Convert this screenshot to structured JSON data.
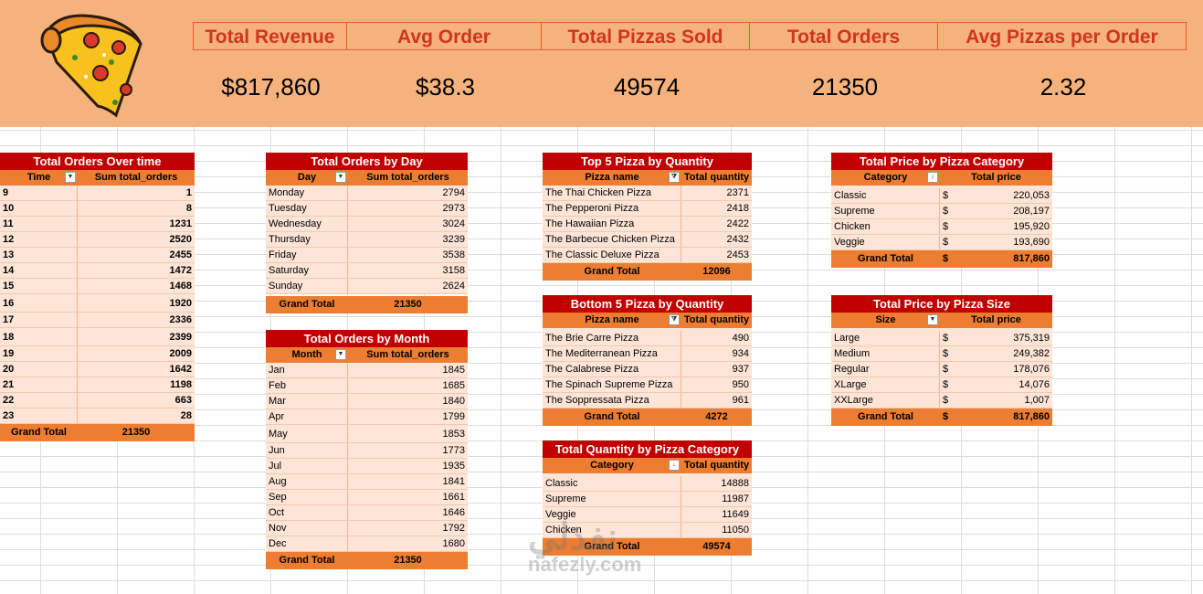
{
  "kpis": [
    {
      "label": "Total Revenue",
      "value": "$817,860"
    },
    {
      "label": "Avg Order",
      "value": "$38.3"
    },
    {
      "label": "Total Pizzas Sold",
      "value": "49574"
    },
    {
      "label": "Total Orders",
      "value": "21350"
    },
    {
      "label": "Avg Pizzas per Order",
      "value": "2.32"
    }
  ],
  "orders_time": {
    "title": "Total Orders Over time",
    "col1": "Time",
    "col2": "Sum total_orders",
    "rows": [
      [
        "9",
        "1"
      ],
      [
        "10",
        "8"
      ],
      [
        "11",
        "1231"
      ],
      [
        "12",
        "2520"
      ],
      [
        "13",
        "2455"
      ],
      [
        "14",
        "1472"
      ],
      [
        "15",
        "1468"
      ],
      [
        "16",
        "1920"
      ],
      [
        "17",
        "2336"
      ],
      [
        "18",
        "2399"
      ],
      [
        "19",
        "2009"
      ],
      [
        "20",
        "1642"
      ],
      [
        "21",
        "1198"
      ],
      [
        "22",
        "663"
      ],
      [
        "23",
        "28"
      ]
    ],
    "total_label": "Grand Total",
    "total": "21350"
  },
  "orders_day": {
    "title": "Total Orders by Day",
    "col1": "Day",
    "col2": "Sum total_orders",
    "rows": [
      [
        "Monday",
        "2794"
      ],
      [
        "Tuesday",
        "2973"
      ],
      [
        "Wednesday",
        "3024"
      ],
      [
        "Thursday",
        "3239"
      ],
      [
        "Friday",
        "3538"
      ],
      [
        "Saturday",
        "3158"
      ],
      [
        "Sunday",
        "2624"
      ]
    ],
    "total_label": "Grand Total",
    "total": "21350"
  },
  "orders_month": {
    "title": "Total Orders by Month",
    "col1": "Month",
    "col2": "Sum total_orders",
    "rows": [
      [
        "Jan",
        "1845"
      ],
      [
        "Feb",
        "1685"
      ],
      [
        "Mar",
        "1840"
      ],
      [
        "Apr",
        "1799"
      ],
      [
        "May",
        "1853"
      ],
      [
        "Jun",
        "1773"
      ],
      [
        "Jul",
        "1935"
      ],
      [
        "Aug",
        "1841"
      ],
      [
        "Sep",
        "1661"
      ],
      [
        "Oct",
        "1646"
      ],
      [
        "Nov",
        "1792"
      ],
      [
        "Dec",
        "1680"
      ]
    ],
    "total_label": "Grand Total",
    "total": "21350"
  },
  "top5": {
    "title": "Top 5 Pizza by Quantity",
    "col1": "Pizza name",
    "col2": "Total quantity",
    "rows": [
      [
        "The Thai Chicken Pizza",
        "2371"
      ],
      [
        "The Pepperoni Pizza",
        "2418"
      ],
      [
        "The Hawaiian Pizza",
        "2422"
      ],
      [
        "The Barbecue Chicken Pizza",
        "2432"
      ],
      [
        "The Classic Deluxe Pizza",
        "2453"
      ]
    ],
    "total_label": "Grand Total",
    "total": "12096"
  },
  "bottom5": {
    "title": "Bottom 5 Pizza by Quantity",
    "col1": "Pizza name",
    "col2": "Total quantity",
    "rows": [
      [
        "The Brie Carre Pizza",
        "490"
      ],
      [
        "The Mediterranean Pizza",
        "934"
      ],
      [
        "The Calabrese Pizza",
        "937"
      ],
      [
        "The Spinach Supreme Pizza",
        "950"
      ],
      [
        "The Soppressata Pizza",
        "961"
      ]
    ],
    "total_label": "Grand Total",
    "total": "4272"
  },
  "qty_category": {
    "title": "Total Quantity  by Pizza Category",
    "col1": "Category",
    "col2": "Total quantity",
    "rows": [
      [
        "Classic",
        "14888"
      ],
      [
        "Supreme",
        "11987"
      ],
      [
        "Veggie",
        "11649"
      ],
      [
        "Chicken",
        "11050"
      ]
    ],
    "total_label": "Grand Total",
    "total": "49574"
  },
  "price_category": {
    "title": "Total Price by Pizza Category",
    "col1": "Category",
    "col2": "Total price",
    "rows": [
      [
        "Classic",
        "220,053"
      ],
      [
        "Supreme",
        "208,197"
      ],
      [
        "Chicken",
        "195,920"
      ],
      [
        "Veggie",
        "193,690"
      ]
    ],
    "total_label": "Grand Total",
    "total": "817,860",
    "currency": "$"
  },
  "price_size": {
    "title": "Total Price by Pizza Size",
    "col1": "Size",
    "col2": "Total price",
    "rows": [
      [
        "Large",
        "375,319"
      ],
      [
        "Medium",
        "249,382"
      ],
      [
        "Regular",
        "178,076"
      ],
      [
        "XLarge",
        "14,076"
      ],
      [
        "XXLarge",
        "1,007"
      ]
    ],
    "total_label": "Grand Total",
    "total": "817,860",
    "currency": "$"
  },
  "watermark": {
    "arabic": "نفذلي",
    "latin": "nafezly.com"
  },
  "icons": {
    "logo": "pizza-slice-icon",
    "dropdown": "dropdown-arrow-icon",
    "filter": "filter-icon",
    "sort": "sort-icon"
  },
  "colors": {
    "banner": "#f5b27d",
    "title_bg": "#c00000",
    "header_bg": "#ed7d31",
    "row_bg": "#fce4d6",
    "kpi_text": "#d0351d"
  }
}
